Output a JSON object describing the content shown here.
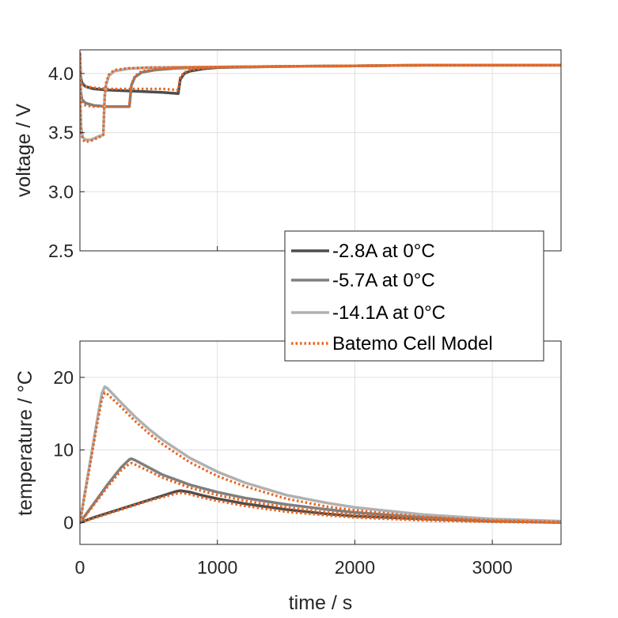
{
  "chart_data": [
    {
      "type": "line",
      "ylabel": "voltage / V",
      "xlabel": "",
      "xlim": [
        0,
        3500
      ],
      "ylim": [
        2.5,
        4.2
      ],
      "yticks": [
        "2.5",
        "3.0",
        "3.5",
        "4.0"
      ],
      "grid": true,
      "series": [
        {
          "name": "-2.8A at 0°C",
          "color": "#4d4d4d",
          "style": "solid",
          "x": [
            0,
            5,
            15,
            40,
            100,
            200,
            400,
            600,
            715,
            730,
            760,
            800,
            900,
            1000,
            1500,
            2000,
            2500,
            3000,
            3500
          ],
          "y": [
            4.17,
            3.97,
            3.92,
            3.89,
            3.87,
            3.86,
            3.85,
            3.84,
            3.83,
            3.95,
            4.0,
            4.02,
            4.04,
            4.05,
            4.06,
            4.065,
            4.07,
            4.07,
            4.07
          ]
        },
        {
          "name": "-5.7A at 0°C",
          "color": "#7f7f7f",
          "style": "solid",
          "x": [
            0,
            5,
            15,
            40,
            100,
            200,
            300,
            360,
            375,
            400,
            450,
            550,
            700,
            1000,
            1500,
            2000,
            2500,
            3000,
            3500
          ],
          "y": [
            4.17,
            3.85,
            3.78,
            3.75,
            3.73,
            3.72,
            3.72,
            3.72,
            3.9,
            3.97,
            4.01,
            4.03,
            4.045,
            4.055,
            4.06,
            4.065,
            4.07,
            4.07,
            4.07
          ]
        },
        {
          "name": "-14.1A at 0°C",
          "color": "#b0b0b0",
          "style": "solid",
          "x": [
            0,
            3,
            8,
            20,
            40,
            80,
            140,
            170,
            180,
            190,
            210,
            250,
            350,
            500,
            1000,
            1500,
            2000,
            2500,
            3000,
            3500
          ],
          "y": [
            4.17,
            3.75,
            3.55,
            3.46,
            3.44,
            3.44,
            3.47,
            3.48,
            3.8,
            3.9,
            3.98,
            4.02,
            4.04,
            4.05,
            4.055,
            4.06,
            4.065,
            4.07,
            4.07,
            4.07
          ]
        },
        {
          "name": "Batemo Cell Model",
          "color": "#e8641e",
          "style": "dotted",
          "paths": [
            {
              "x": [
                0,
                5,
                15,
                40,
                100,
                200,
                400,
                600,
                715,
                730,
                760,
                800,
                900,
                1000,
                1500,
                2000,
                2500,
                3000,
                3500
              ],
              "y": [
                4.17,
                3.95,
                3.91,
                3.89,
                3.88,
                3.87,
                3.87,
                3.87,
                3.86,
                3.97,
                4.01,
                4.03,
                4.045,
                4.055,
                4.06,
                4.065,
                4.07,
                4.07,
                4.07
              ]
            },
            {
              "x": [
                0,
                5,
                15,
                40,
                100,
                200,
                300,
                360,
                375,
                400,
                450,
                550,
                700,
                1000,
                1500,
                2000,
                2500,
                3000,
                3500
              ],
              "y": [
                4.17,
                3.83,
                3.76,
                3.73,
                3.72,
                3.72,
                3.72,
                3.72,
                3.91,
                3.98,
                4.02,
                4.035,
                4.05,
                4.055,
                4.06,
                4.065,
                4.07,
                4.07,
                4.07
              ]
            },
            {
              "x": [
                0,
                3,
                8,
                20,
                40,
                80,
                140,
                170,
                180,
                190,
                210,
                250,
                350,
                500,
                1000,
                1500,
                2000,
                2500,
                3000,
                3500
              ],
              "y": [
                4.17,
                3.72,
                3.52,
                3.44,
                3.42,
                3.43,
                3.46,
                3.48,
                3.82,
                3.92,
                3.99,
                4.03,
                4.045,
                4.05,
                4.055,
                4.06,
                4.065,
                4.07,
                4.07,
                4.07
              ]
            }
          ]
        }
      ]
    },
    {
      "type": "line",
      "ylabel": "temperature / °C",
      "xlabel": "time / s",
      "xlim": [
        0,
        3500
      ],
      "ylim": [
        -3,
        25
      ],
      "xticks": [
        "0",
        "1000",
        "2000",
        "3000"
      ],
      "yticks": [
        "0",
        "10",
        "20"
      ],
      "grid": true,
      "series": [
        {
          "name": "-2.8A at 0°C",
          "color": "#4d4d4d",
          "style": "solid",
          "x": [
            0,
            100,
            200,
            300,
            400,
            500,
            600,
            700,
            730,
            800,
            900,
            1000,
            1200,
            1500,
            1800,
            2000,
            2500,
            3000,
            3500
          ],
          "y": [
            0,
            0.7,
            1.3,
            1.9,
            2.5,
            3.1,
            3.7,
            4.3,
            4.4,
            4.2,
            3.7,
            3.3,
            2.6,
            1.8,
            1.2,
            0.9,
            0.5,
            0.2,
            0.05
          ]
        },
        {
          "name": "-5.7A at 0°C",
          "color": "#7f7f7f",
          "style": "solid",
          "x": [
            0,
            100,
            200,
            300,
            360,
            375,
            400,
            500,
            600,
            800,
            1000,
            1200,
            1500,
            1800,
            2000,
            2500,
            3000,
            3500
          ],
          "y": [
            0,
            2.6,
            5.2,
            7.6,
            8.7,
            8.8,
            8.6,
            7.6,
            6.6,
            5.2,
            4.2,
            3.4,
            2.5,
            1.8,
            1.4,
            0.7,
            0.3,
            0.1
          ]
        },
        {
          "name": "-14.1A at 0°C",
          "color": "#b0b0b0",
          "style": "solid",
          "x": [
            0,
            40,
            80,
            120,
            160,
            180,
            200,
            250,
            300,
            400,
            500,
            600,
            800,
            1000,
            1200,
            1500,
            1800,
            2000,
            2500,
            3000,
            3500
          ],
          "y": [
            0,
            4.5,
            9.0,
            13.5,
            17.8,
            18.7,
            18.5,
            17.5,
            16.5,
            14.6,
            12.9,
            11.4,
            8.9,
            7.0,
            5.5,
            3.8,
            2.7,
            2.1,
            1.1,
            0.5,
            0.2
          ]
        },
        {
          "name": "Batemo Cell Model",
          "color": "#e8641e",
          "style": "dotted",
          "paths": [
            {
              "x": [
                0,
                100,
                200,
                300,
                400,
                500,
                600,
                700,
                730,
                800,
                900,
                1000,
                1200,
                1500,
                1800,
                2000,
                2500,
                3000,
                3500
              ],
              "y": [
                0,
                0.6,
                1.2,
                1.8,
                2.4,
                3.0,
                3.5,
                4.0,
                4.1,
                3.9,
                3.4,
                3.0,
                2.3,
                1.5,
                1.0,
                0.7,
                0.3,
                0.1,
                0.0
              ]
            },
            {
              "x": [
                0,
                100,
                200,
                300,
                360,
                375,
                400,
                500,
                600,
                800,
                1000,
                1200,
                1500,
                1800,
                2000,
                2500,
                3000,
                3500
              ],
              "y": [
                0,
                2.4,
                4.9,
                7.2,
                8.1,
                8.2,
                8.0,
                7.1,
                6.2,
                4.8,
                3.8,
                3.0,
                2.1,
                1.4,
                1.1,
                0.5,
                0.2,
                0.0
              ]
            },
            {
              "x": [
                0,
                40,
                80,
                120,
                160,
                180,
                200,
                250,
                300,
                400,
                500,
                600,
                800,
                1000,
                1200,
                1500,
                1800,
                2000,
                2500,
                3000,
                3500
              ],
              "y": [
                0,
                4.3,
                8.6,
                13.0,
                17.0,
                17.9,
                17.7,
                16.8,
                15.9,
                14.0,
                12.3,
                10.8,
                8.3,
                6.4,
                5.0,
                3.3,
                2.2,
                1.7,
                0.8,
                0.3,
                0.1
              ]
            }
          ]
        }
      ]
    }
  ],
  "legend": {
    "placement": "between-panels-right",
    "entries": [
      {
        "label": "-2.8A at 0°C",
        "color": "#4d4d4d",
        "style": "solid"
      },
      {
        "label": "-5.7A at 0°C",
        "color": "#7f7f7f",
        "style": "solid"
      },
      {
        "label": "-14.1A at 0°C",
        "color": "#b0b0b0",
        "style": "solid"
      },
      {
        "label": "Batemo Cell Model",
        "color": "#e8641e",
        "style": "dotted"
      }
    ]
  }
}
